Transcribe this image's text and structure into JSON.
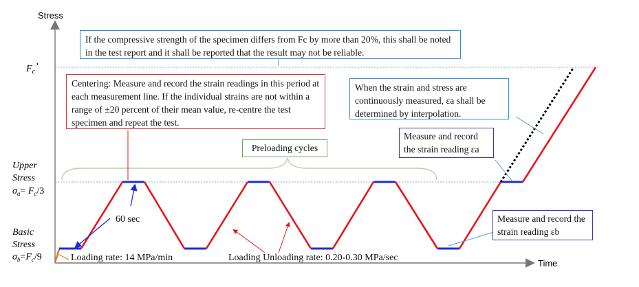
{
  "axes": {
    "y_title": "Stress",
    "x_title": "Time"
  },
  "levels": {
    "fc": "Fc'",
    "upper_line1": "Upper",
    "upper_line2": "Stress",
    "upper_eq": "σa= Fc/3",
    "basic_line1": "Basic",
    "basic_line2": "Stress",
    "basic_eq": "σb=Fc/9"
  },
  "notes": {
    "top_note": "If the compressive strength of the specimen differs from Fc by more than 20%, this shall be noted in the test report and it shall be reported that the result may not be reliable.",
    "centering": "Centering: Measure and record the strain readings in this period at each measurement line. If the individual strains are not within a range of ±20 percent of their mean value, re-centre the test specimen and repeat the test.",
    "interpolation": "When the strain and stress are continuously measured, εa shall be determined by interpolation.",
    "preloading": "Preloading cycles",
    "measure_a": "Measure and record the strain reading εa",
    "measure_b": "Measure and record the strain reading εb",
    "hold_time": "60 sec",
    "loading_rate": "Loading rate: 14 MPa/min",
    "unloading_rate": "Loading Unloading rate: 0.20-0.30 MPa/sec"
  },
  "colors": {
    "ramp": "#e8141b",
    "hold": "#1f2bd6",
    "dotted": "#000000",
    "ref_line": "#8fa8d8",
    "axis": "#777777",
    "orange": "#e07a20"
  }
}
